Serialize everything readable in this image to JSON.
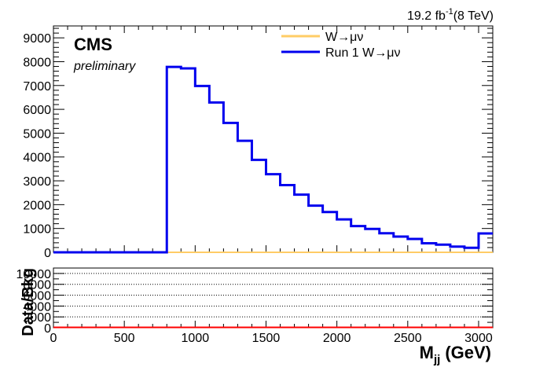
{
  "luminosity_label": {
    "value": "19.2 fb",
    "superscript": "-1",
    "energy": "(8 TeV)"
  },
  "cms_label": "CMS",
  "preliminary_label": "preliminary",
  "chart_data": [
    {
      "type": "line",
      "step": true,
      "panel": "main",
      "xlabel": "M",
      "xlabel_subscript": "jj",
      "xlabel_unit": "(GeV)",
      "ylabel": "",
      "xlim": [
        0,
        3100
      ],
      "ylim": [
        0,
        9500
      ],
      "x_ticks": [
        0,
        500,
        1000,
        1500,
        2000,
        2500,
        3000
      ],
      "y_ticks": [
        0,
        1000,
        2000,
        3000,
        4000,
        5000,
        6000,
        7000,
        8000,
        9000
      ],
      "legend_position": "top-right",
      "bin_edges": [
        0,
        100,
        200,
        300,
        400,
        500,
        600,
        700,
        800,
        900,
        1000,
        1100,
        1200,
        1300,
        1400,
        1500,
        1600,
        1700,
        1800,
        1900,
        2000,
        2100,
        2200,
        2300,
        2400,
        2500,
        2600,
        2700,
        2800,
        2900,
        3000,
        3100
      ],
      "series": [
        {
          "name": "W→μν",
          "color": "#ffcc66",
          "values": [
            0,
            0,
            0,
            0,
            0,
            0,
            0,
            0,
            0,
            0,
            0,
            0,
            0,
            0,
            0,
            0,
            0,
            0,
            0,
            0,
            0,
            0,
            0,
            0,
            0,
            0,
            0,
            0,
            0,
            0,
            0
          ]
        },
        {
          "name": "Run 1 W→μν",
          "color": "#0000ee",
          "values": [
            0,
            0,
            0,
            0,
            0,
            0,
            0,
            0,
            7780,
            7720,
            6980,
            6290,
            5430,
            4680,
            3880,
            3280,
            2820,
            2420,
            1960,
            1690,
            1380,
            1100,
            980,
            800,
            660,
            560,
            380,
            320,
            240,
            190,
            790
          ]
        }
      ]
    },
    {
      "type": "line",
      "panel": "ratio",
      "ylabel": "Data/Bkg",
      "xlim": [
        0,
        3100
      ],
      "ylim": [
        0,
        11000
      ],
      "x_ticks": [
        0,
        500,
        1000,
        1500,
        2000,
        2500,
        3000
      ],
      "y_ticks": [
        0,
        2000,
        4000,
        6000,
        8000,
        10000
      ],
      "grid": "horizontal-dotted",
      "series": [
        {
          "color": "#ff0000",
          "x": [
            0,
            3100
          ],
          "values": [
            0,
            0
          ]
        }
      ]
    }
  ]
}
